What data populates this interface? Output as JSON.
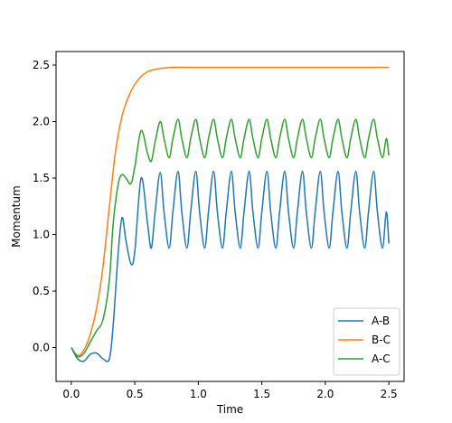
{
  "chart_data": {
    "type": "line",
    "xlabel": "Time",
    "ylabel": "Momentum",
    "xlim": [
      -0.12,
      2.62
    ],
    "ylim": [
      -0.3,
      2.62
    ],
    "xticks": [
      "0.0",
      "0.5",
      "1.0",
      "1.5",
      "2.0",
      "2.5"
    ],
    "yticks": [
      "0.0",
      "0.5",
      "1.0",
      "1.5",
      "2.0",
      "2.5"
    ],
    "grid": false,
    "legend_position": "bottom-right",
    "series": [
      {
        "name": "A-B",
        "color": "#1f77b4",
        "x": [
          0,
          0.05,
          0.1,
          0.15,
          0.2,
          0.25,
          0.3,
          0.33,
          0.37,
          0.4,
          0.43,
          0.47,
          0.5,
          0.55,
          0.6,
          0.63,
          0.66,
          0.7,
          0.73,
          0.77,
          0.8,
          0.84,
          0.87,
          0.91,
          0.94,
          0.98,
          1.01,
          1.05,
          1.08,
          1.12,
          1.15,
          1.19,
          1.22,
          1.26,
          1.29,
          1.33,
          1.36,
          1.4,
          1.43,
          1.47,
          1.5,
          1.54,
          1.57,
          1.61,
          1.64,
          1.68,
          1.71,
          1.75,
          1.78,
          1.82,
          1.85,
          1.89,
          1.92,
          1.96,
          1.99,
          2.03,
          2.06,
          2.1,
          2.13,
          2.17,
          2.2,
          2.24,
          2.27,
          2.31,
          2.34,
          2.38,
          2.41,
          2.45,
          2.48,
          2.5
        ],
        "y": [
          0.0,
          -0.1,
          -0.12,
          -0.06,
          -0.05,
          -0.1,
          -0.1,
          0.2,
          0.85,
          1.15,
          0.95,
          0.74,
          0.85,
          1.5,
          1.1,
          0.88,
          1.2,
          1.55,
          1.2,
          0.88,
          1.2,
          1.56,
          1.2,
          0.88,
          1.2,
          1.56,
          1.2,
          0.88,
          1.2,
          1.56,
          1.2,
          0.88,
          1.2,
          1.56,
          1.2,
          0.88,
          1.2,
          1.56,
          1.2,
          0.88,
          1.2,
          1.56,
          1.2,
          0.88,
          1.2,
          1.56,
          1.2,
          0.88,
          1.2,
          1.56,
          1.2,
          0.88,
          1.2,
          1.56,
          1.2,
          0.88,
          1.2,
          1.56,
          1.2,
          0.88,
          1.2,
          1.56,
          1.2,
          0.88,
          1.2,
          1.56,
          1.2,
          0.88,
          1.2,
          0.92
        ]
      },
      {
        "name": "B-C",
        "color": "#ff7f0e",
        "x": [
          0,
          0.05,
          0.1,
          0.15,
          0.2,
          0.25,
          0.3,
          0.35,
          0.4,
          0.45,
          0.5,
          0.55,
          0.6,
          0.65,
          0.7,
          0.8,
          0.9,
          1.0,
          1.2,
          1.5,
          2.0,
          2.5
        ],
        "y": [
          0.0,
          -0.07,
          -0.02,
          0.12,
          0.35,
          0.72,
          1.25,
          1.75,
          2.05,
          2.22,
          2.33,
          2.4,
          2.44,
          2.46,
          2.47,
          2.48,
          2.48,
          2.48,
          2.48,
          2.48,
          2.48,
          2.48
        ]
      },
      {
        "name": "A-C",
        "color": "#2ca02c",
        "x": [
          0,
          0.05,
          0.1,
          0.15,
          0.2,
          0.25,
          0.3,
          0.33,
          0.37,
          0.4,
          0.43,
          0.47,
          0.5,
          0.55,
          0.6,
          0.63,
          0.66,
          0.7,
          0.73,
          0.77,
          0.8,
          0.84,
          0.87,
          0.91,
          0.94,
          0.98,
          1.01,
          1.05,
          1.08,
          1.12,
          1.15,
          1.19,
          1.22,
          1.26,
          1.29,
          1.33,
          1.36,
          1.4,
          1.43,
          1.47,
          1.5,
          1.54,
          1.57,
          1.61,
          1.64,
          1.68,
          1.71,
          1.75,
          1.78,
          1.82,
          1.85,
          1.89,
          1.92,
          1.96,
          1.99,
          2.03,
          2.06,
          2.1,
          2.13,
          2.17,
          2.2,
          2.24,
          2.27,
          2.31,
          2.34,
          2.38,
          2.41,
          2.45,
          2.48,
          2.5
        ],
        "y": [
          0.0,
          -0.08,
          -0.05,
          0.05,
          0.15,
          0.25,
          0.6,
          1.1,
          1.45,
          1.53,
          1.5,
          1.45,
          1.6,
          1.92,
          1.72,
          1.65,
          1.82,
          2.0,
          1.85,
          1.68,
          1.85,
          2.02,
          1.85,
          1.68,
          1.85,
          2.02,
          1.85,
          1.68,
          1.85,
          2.02,
          1.85,
          1.68,
          1.85,
          2.02,
          1.85,
          1.68,
          1.85,
          2.02,
          1.85,
          1.68,
          1.85,
          2.02,
          1.85,
          1.68,
          1.85,
          2.02,
          1.85,
          1.68,
          1.85,
          2.02,
          1.85,
          1.68,
          1.85,
          2.02,
          1.85,
          1.68,
          1.85,
          2.02,
          1.85,
          1.68,
          1.85,
          2.02,
          1.85,
          1.68,
          1.85,
          2.02,
          1.85,
          1.68,
          1.85,
          1.7
        ]
      }
    ]
  }
}
